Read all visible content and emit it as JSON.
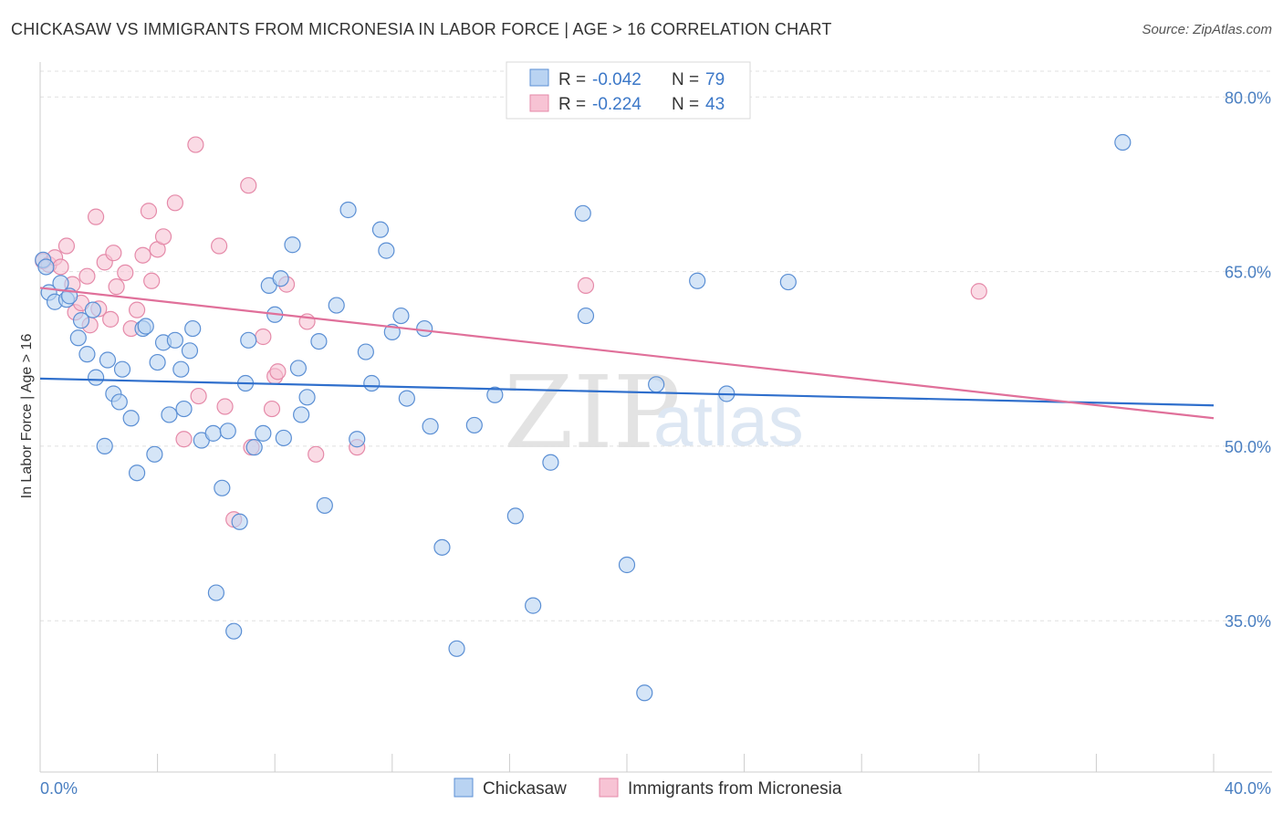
{
  "title": "CHICKASAW VS IMMIGRANTS FROM MICRONESIA IN LABOR FORCE | AGE > 16 CORRELATION CHART",
  "source": "Source: ZipAtlas.com",
  "watermark": {
    "zip": "ZIP",
    "atlas": "atlas"
  },
  "legend": {
    "r_label": "R =",
    "n_label": "N =",
    "rows": [
      {
        "r": "-0.042",
        "n": "79"
      },
      {
        "r": "-0.224",
        "n": "43"
      }
    ]
  },
  "colors": {
    "blue_fill": "#b9d3f2",
    "blue_stroke": "#5b8fd4",
    "blue_line": "#2f6fcc",
    "pink_fill": "#f7c3d4",
    "pink_stroke": "#e58aa9",
    "pink_line": "#e0709a",
    "tick_text": "#4a7fc1",
    "grid": "#e0e0e0"
  },
  "chart_data": {
    "type": "scatter",
    "title": "CHICKASAW VS IMMIGRANTS FROM MICRONESIA IN LABOR FORCE | AGE > 16 CORRELATION CHART",
    "xlabel": "",
    "ylabel": "In Labor Force | Age > 16",
    "xlim": [
      0,
      40
    ],
    "ylim": [
      22,
      83
    ],
    "x_tick_labels": [
      {
        "value": 0,
        "label": "0.0%"
      },
      {
        "value": 40,
        "label": "40.0%"
      }
    ],
    "y_tick_labels": [
      {
        "value": 80,
        "label": "80.0%"
      },
      {
        "value": 65,
        "label": "65.0%"
      },
      {
        "value": 50,
        "label": "50.0%"
      },
      {
        "value": 35,
        "label": "35.0%"
      }
    ],
    "series": [
      {
        "name": "Chickasaw",
        "r": -0.042,
        "n": 79,
        "trend": {
          "x": [
            0,
            40
          ],
          "y": [
            55.8,
            53.5
          ]
        },
        "points": [
          [
            0.1,
            66.0
          ],
          [
            0.2,
            65.4
          ],
          [
            0.3,
            63.2
          ],
          [
            0.5,
            62.4
          ],
          [
            0.7,
            64.0
          ],
          [
            0.9,
            62.6
          ],
          [
            1.0,
            62.9
          ],
          [
            1.3,
            59.3
          ],
          [
            1.4,
            60.8
          ],
          [
            1.6,
            57.9
          ],
          [
            1.8,
            61.7
          ],
          [
            1.9,
            55.9
          ],
          [
            2.2,
            50.0
          ],
          [
            2.3,
            57.4
          ],
          [
            2.5,
            54.5
          ],
          [
            2.7,
            53.8
          ],
          [
            2.8,
            56.6
          ],
          [
            3.1,
            52.4
          ],
          [
            3.3,
            47.7
          ],
          [
            3.5,
            60.1
          ],
          [
            3.6,
            60.3
          ],
          [
            3.9,
            49.3
          ],
          [
            4.0,
            57.2
          ],
          [
            4.2,
            58.9
          ],
          [
            4.4,
            52.7
          ],
          [
            4.6,
            59.1
          ],
          [
            4.8,
            56.6
          ],
          [
            4.9,
            53.2
          ],
          [
            5.1,
            58.2
          ],
          [
            5.2,
            60.1
          ],
          [
            5.5,
            50.5
          ],
          [
            5.9,
            51.1
          ],
          [
            6.0,
            37.4
          ],
          [
            6.2,
            46.4
          ],
          [
            6.4,
            51.3
          ],
          [
            6.6,
            34.1
          ],
          [
            6.8,
            43.5
          ],
          [
            7.0,
            55.4
          ],
          [
            7.1,
            59.1
          ],
          [
            7.3,
            49.9
          ],
          [
            7.6,
            51.1
          ],
          [
            7.8,
            63.8
          ],
          [
            8.0,
            61.3
          ],
          [
            8.2,
            64.4
          ],
          [
            8.3,
            50.7
          ],
          [
            8.6,
            67.3
          ],
          [
            8.8,
            56.7
          ],
          [
            8.9,
            52.7
          ],
          [
            9.1,
            54.2
          ],
          [
            9.5,
            59.0
          ],
          [
            9.7,
            44.9
          ],
          [
            10.1,
            62.1
          ],
          [
            10.5,
            70.3
          ],
          [
            10.8,
            50.6
          ],
          [
            11.1,
            58.1
          ],
          [
            11.3,
            55.4
          ],
          [
            11.6,
            68.6
          ],
          [
            11.8,
            66.8
          ],
          [
            12.0,
            59.8
          ],
          [
            12.3,
            61.2
          ],
          [
            12.5,
            54.1
          ],
          [
            13.1,
            60.1
          ],
          [
            13.3,
            51.7
          ],
          [
            13.7,
            41.3
          ],
          [
            14.2,
            32.6
          ],
          [
            14.8,
            51.8
          ],
          [
            15.5,
            54.4
          ],
          [
            16.2,
            44.0
          ],
          [
            16.8,
            36.3
          ],
          [
            17.4,
            48.6
          ],
          [
            18.5,
            70.0
          ],
          [
            18.6,
            61.2
          ],
          [
            20.0,
            39.8
          ],
          [
            20.6,
            28.8
          ],
          [
            21.0,
            55.3
          ],
          [
            22.4,
            64.2
          ],
          [
            23.4,
            54.5
          ],
          [
            25.5,
            64.1
          ],
          [
            36.9,
            76.1
          ]
        ]
      },
      {
        "name": "Immigrants from Micronesia",
        "r": -0.224,
        "n": 43,
        "trend": {
          "x": [
            0,
            40
          ],
          "y": [
            63.6,
            52.4
          ]
        },
        "points": [
          [
            0.1,
            65.9
          ],
          [
            0.3,
            65.6
          ],
          [
            0.5,
            66.2
          ],
          [
            0.7,
            65.4
          ],
          [
            0.9,
            67.2
          ],
          [
            1.1,
            63.9
          ],
          [
            1.2,
            61.5
          ],
          [
            1.4,
            62.3
          ],
          [
            1.6,
            64.6
          ],
          [
            1.7,
            60.4
          ],
          [
            1.9,
            69.7
          ],
          [
            2.0,
            61.8
          ],
          [
            2.2,
            65.8
          ],
          [
            2.4,
            60.9
          ],
          [
            2.5,
            66.6
          ],
          [
            2.6,
            63.7
          ],
          [
            2.9,
            64.9
          ],
          [
            3.1,
            60.1
          ],
          [
            3.3,
            61.7
          ],
          [
            3.5,
            66.4
          ],
          [
            3.7,
            70.2
          ],
          [
            3.8,
            64.2
          ],
          [
            4.0,
            66.9
          ],
          [
            4.2,
            68.0
          ],
          [
            4.6,
            70.9
          ],
          [
            4.9,
            50.6
          ],
          [
            5.3,
            75.9
          ],
          [
            5.4,
            54.3
          ],
          [
            6.1,
            67.2
          ],
          [
            6.3,
            53.4
          ],
          [
            6.6,
            43.7
          ],
          [
            7.1,
            72.4
          ],
          [
            7.2,
            49.9
          ],
          [
            7.6,
            59.4
          ],
          [
            7.9,
            53.2
          ],
          [
            8.0,
            56.0
          ],
          [
            8.1,
            56.4
          ],
          [
            8.4,
            63.9
          ],
          [
            9.1,
            60.7
          ],
          [
            9.4,
            49.3
          ],
          [
            10.8,
            49.9
          ],
          [
            18.6,
            63.8
          ],
          [
            32.0,
            63.3
          ]
        ]
      }
    ]
  },
  "bottom_legend": [
    "Chickasaw",
    "Immigrants from Micronesia"
  ]
}
